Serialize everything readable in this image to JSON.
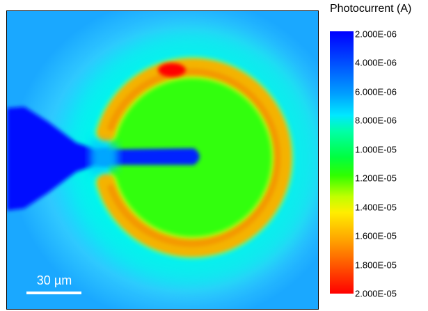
{
  "chart_data": {
    "type": "heatmap",
    "colorbar": {
      "title": "Photocurrent (A)",
      "tick_labels": [
        "2.000E-06",
        "4.000E-06",
        "6.000E-06",
        "8.000E-06",
        "1.000E-05",
        "1.200E-05",
        "1.400E-05",
        "1.600E-05",
        "1.800E-05",
        "2.000E-05"
      ],
      "range": [
        2e-06,
        2e-05
      ],
      "colormap": [
        "#0000ff",
        "#00a0ff",
        "#00ffff",
        "#00ff00",
        "#ffff00",
        "#ff0000"
      ]
    },
    "scale_bar_label": "30 µm"
  }
}
